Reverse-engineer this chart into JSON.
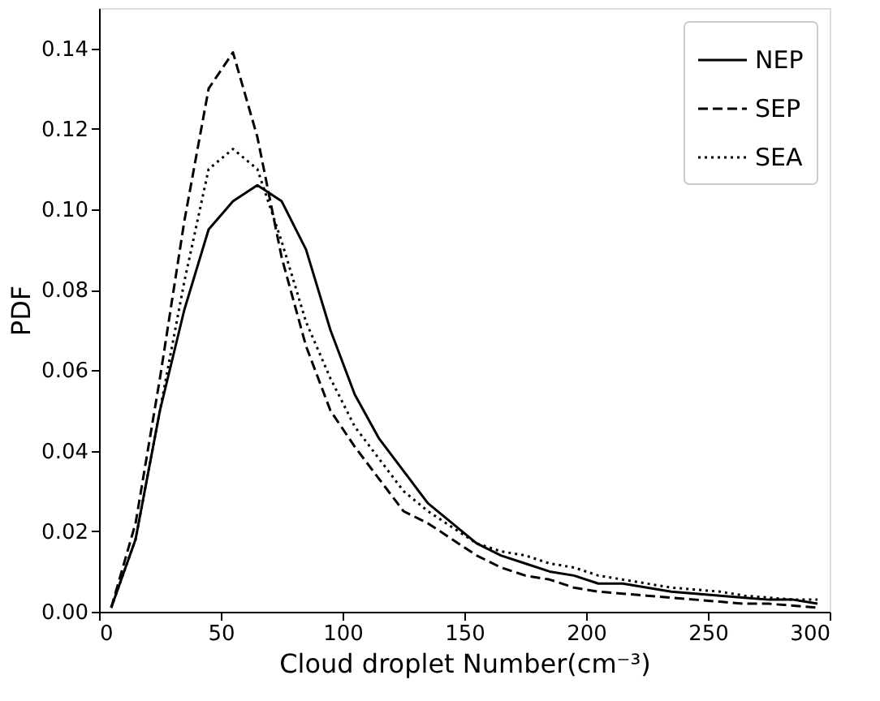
{
  "chart_data": {
    "type": "line",
    "xlabel": "Cloud droplet Number(cm⁻³)",
    "ylabel": "PDF",
    "x": [
      5,
      15,
      25,
      35,
      45,
      55,
      65,
      75,
      85,
      95,
      105,
      115,
      125,
      135,
      145,
      155,
      165,
      175,
      185,
      195,
      205,
      215,
      225,
      235,
      245,
      255,
      265,
      275,
      285,
      295
    ],
    "series": [
      {
        "name": "NEP",
        "color": "#000000",
        "line_style": "solid",
        "values": [
          0.001,
          0.018,
          0.05,
          0.075,
          0.095,
          0.102,
          0.106,
          0.102,
          0.09,
          0.07,
          0.054,
          0.043,
          0.035,
          0.027,
          0.022,
          0.017,
          0.014,
          0.012,
          0.01,
          0.009,
          0.007,
          0.007,
          0.006,
          0.005,
          0.0045,
          0.004,
          0.0035,
          0.003,
          0.003,
          0.002
        ]
      },
      {
        "name": "SEP",
        "color": "#000000",
        "line_style": "dashed",
        "values": [
          0.001,
          0.022,
          0.058,
          0.097,
          0.13,
          0.139,
          0.118,
          0.088,
          0.066,
          0.05,
          0.041,
          0.033,
          0.025,
          0.022,
          0.018,
          0.014,
          0.011,
          0.009,
          0.008,
          0.006,
          0.005,
          0.0045,
          0.004,
          0.0035,
          0.003,
          0.0025,
          0.002,
          0.002,
          0.0015,
          0.001
        ]
      },
      {
        "name": "SEA",
        "color": "#000000",
        "line_style": "dotted",
        "values": [
          0.001,
          0.018,
          0.05,
          0.082,
          0.11,
          0.115,
          0.11,
          0.092,
          0.072,
          0.058,
          0.046,
          0.038,
          0.03,
          0.025,
          0.021,
          0.017,
          0.015,
          0.014,
          0.012,
          0.011,
          0.009,
          0.008,
          0.007,
          0.006,
          0.0055,
          0.005,
          0.004,
          0.0035,
          0.003,
          0.003
        ]
      }
    ],
    "xlim": [
      0,
      300
    ],
    "xticks": [
      0,
      50,
      100,
      150,
      200,
      250,
      300
    ],
    "ylim": [
      0,
      0.15
    ],
    "yticks": [
      {
        "value": 0,
        "label": "0.00"
      },
      {
        "value": 0.02,
        "label": "0.02"
      },
      {
        "value": 0.04,
        "label": "0.04"
      },
      {
        "value": 0.06,
        "label": "0.06"
      },
      {
        "value": 0.08,
        "label": "0.08"
      },
      {
        "value": 0.1,
        "label": "0.10"
      },
      {
        "value": 0.12,
        "label": "0.12"
      },
      {
        "value": 0.14,
        "label": "0.14"
      }
    ],
    "grid": false,
    "legend": "top right",
    "marker": "none"
  }
}
